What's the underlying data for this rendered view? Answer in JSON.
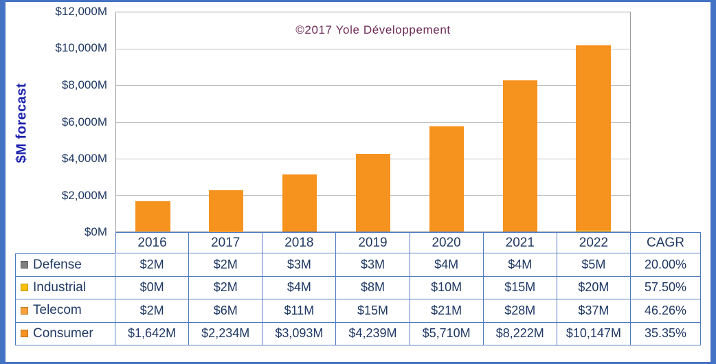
{
  "colors": {
    "frame": "#4472C4",
    "text_navy": "#1F3864",
    "table_line": "#4f79c0",
    "title_plum": "#6d2a58",
    "axis_label_blue": "#1d22ad",
    "grid_line": "#bfbfbf",
    "plot_border": "#9e9e9e"
  },
  "chart_data": {
    "type": "bar",
    "stacked": true,
    "title": "©2017 Yole Développement",
    "ylabel": "$M forecast",
    "ylim": [
      0,
      12000
    ],
    "y_tick_labels": [
      "$12,000M",
      "$10,000M",
      "$8,000M",
      "$6,000M",
      "$4,000M",
      "$2,000M",
      "$0M"
    ],
    "grid": true,
    "legend_position": "table-rows-left",
    "categories": [
      "2016",
      "2017",
      "2018",
      "2019",
      "2020",
      "2021",
      "2022"
    ],
    "series": [
      {
        "name": "Defense",
        "color": "#7F7F7F",
        "values": [
          2,
          2,
          3,
          3,
          4,
          4,
          5
        ],
        "cagr": "20.00%"
      },
      {
        "name": "Industrial",
        "color": "#FFC000",
        "values": [
          0,
          2,
          4,
          8,
          10,
          15,
          20
        ],
        "cagr": "57.50%"
      },
      {
        "name": "Telecom",
        "color": "#F9A23C",
        "values": [
          2,
          6,
          11,
          15,
          21,
          28,
          37
        ],
        "cagr": "46.26%"
      },
      {
        "name": "Consumer",
        "color": "#F6921E",
        "values": [
          1642,
          2234,
          3093,
          4239,
          5710,
          8222,
          10147
        ],
        "cagr": "35.35%"
      }
    ]
  },
  "table": {
    "column_headers": [
      "2016",
      "2017",
      "2018",
      "2019",
      "2020",
      "2021",
      "2022",
      "CAGR"
    ],
    "rows": [
      {
        "label": "Defense",
        "swatch_color": "#7F7F7F",
        "values": [
          "$2M",
          "$2M",
          "$3M",
          "$3M",
          "$4M",
          "$4M",
          "$5M"
        ],
        "cagr": "20.00%"
      },
      {
        "label": "Industrial",
        "swatch_color": "#FFC000",
        "values": [
          "$0M",
          "$2M",
          "$4M",
          "$8M",
          "$10M",
          "$15M",
          "$20M"
        ],
        "cagr": "57.50%"
      },
      {
        "label": "Telecom",
        "swatch_color": "#F9A23C",
        "values": [
          "$2M",
          "$6M",
          "$11M",
          "$15M",
          "$21M",
          "$28M",
          "$37M"
        ],
        "cagr": "46.26%"
      },
      {
        "label": "Consumer",
        "swatch_color": "#F6921E",
        "values": [
          "$1,642M",
          "$2,234M",
          "$3,093M",
          "$4,239M",
          "$5,710M",
          "$8,222M",
          "$10,147M"
        ],
        "cagr": "35.35%"
      }
    ]
  }
}
